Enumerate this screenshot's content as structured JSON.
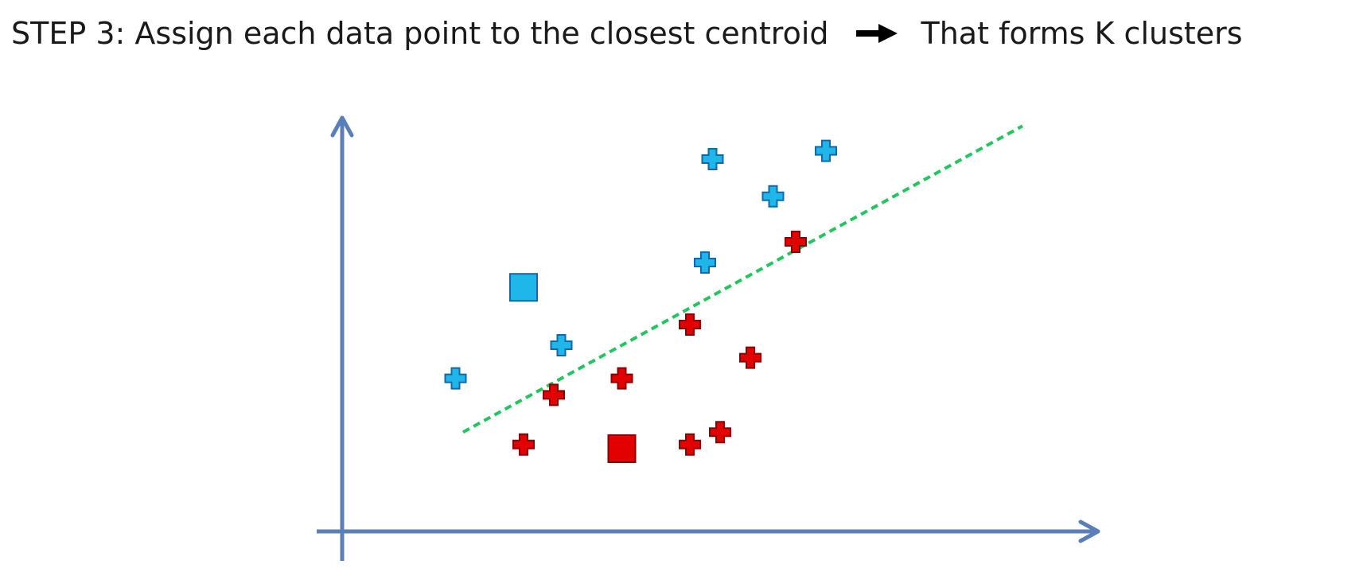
{
  "heading": {
    "step_label": "STEP 3",
    "step_text": ": Assign each data point to the closest centroid",
    "result_text": "That forms K clusters",
    "arrow_icon": "right-arrow-icon"
  },
  "colors": {
    "text": "#1a1a1a",
    "axis": "#5a7fb8",
    "divider": "#22c55e",
    "cluster_blue_fill": "#1fb6ea",
    "cluster_blue_stroke": "#1268a8",
    "cluster_red_fill": "#e20000",
    "cluster_red_stroke": "#8a0000"
  },
  "chart_data": {
    "type": "scatter",
    "xlabel": "",
    "ylabel": "",
    "xlim": [
      0,
      100
    ],
    "ylim": [
      0,
      100
    ],
    "divider_line": {
      "style": "dashed",
      "from": [
        16,
        24
      ],
      "to": [
        90,
        98
      ]
    },
    "clusters": [
      {
        "color": "#1fb6ea",
        "centroid": [
          24,
          59
        ],
        "points": [
          [
            15,
            37
          ],
          [
            29,
            45
          ],
          [
            49,
            90
          ],
          [
            48,
            65
          ],
          [
            57,
            81
          ],
          [
            64,
            92
          ]
        ]
      },
      {
        "color": "#e20000",
        "centroid": [
          37,
          20
        ],
        "points": [
          [
            24,
            21
          ],
          [
            28,
            33
          ],
          [
            37,
            37
          ],
          [
            46,
            50
          ],
          [
            54,
            42
          ],
          [
            60,
            70
          ],
          [
            46,
            21
          ],
          [
            50,
            24
          ]
        ]
      }
    ]
  }
}
